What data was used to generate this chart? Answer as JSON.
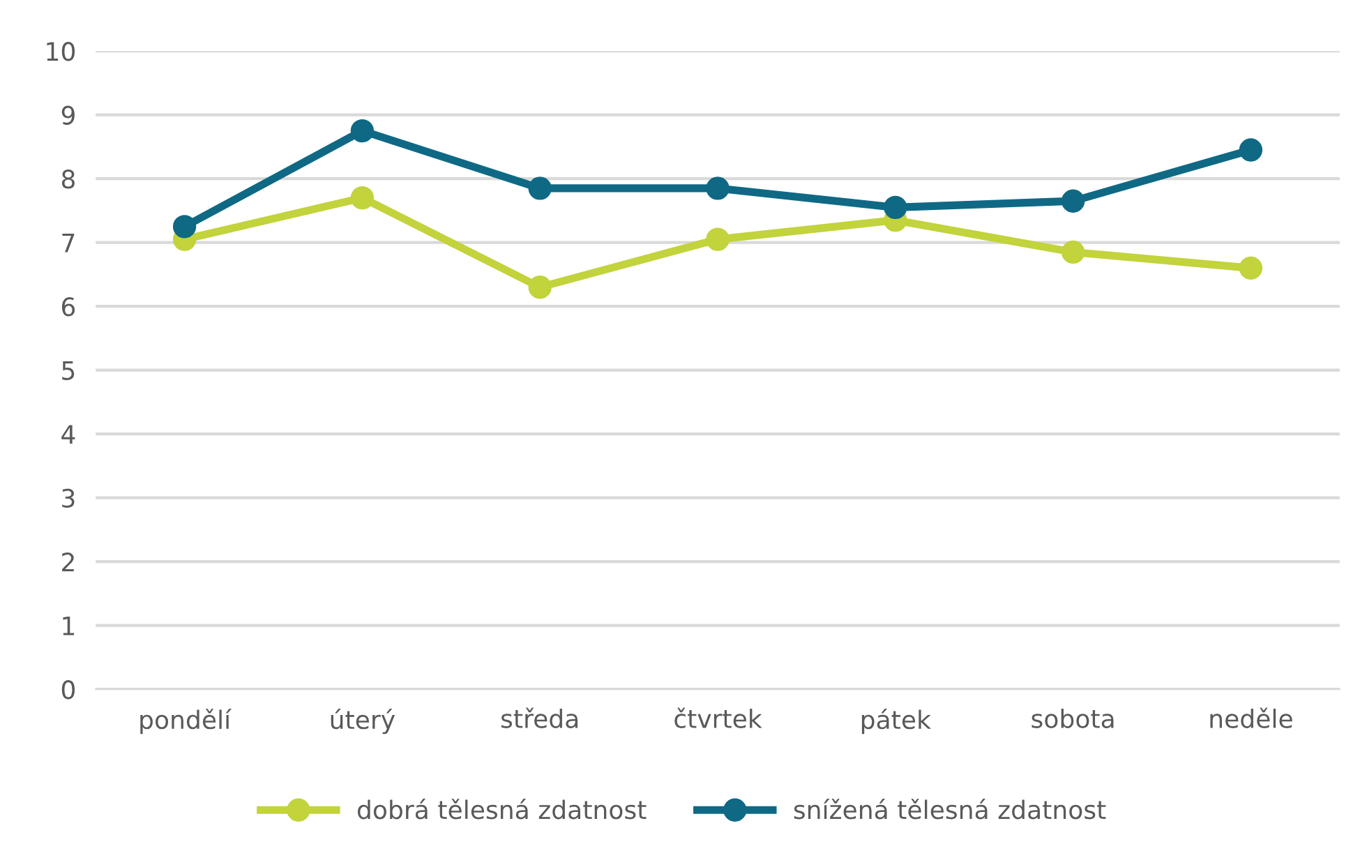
{
  "chart_data": {
    "type": "line",
    "categories": [
      "pondělí",
      "úterý",
      "středa",
      "čtvrtek",
      "pátek",
      "sobota",
      "neděle"
    ],
    "series": [
      {
        "name": "dobrá tělesná zdatnost",
        "color": "#c2d33c",
        "values": [
          7.05,
          7.7,
          6.3,
          7.05,
          7.35,
          6.85,
          6.6
        ]
      },
      {
        "name": "snížená tělesná zdatnost",
        "color": "#0f6985",
        "values": [
          7.25,
          8.75,
          7.85,
          7.85,
          7.55,
          7.65,
          8.45
        ]
      }
    ],
    "ylim": [
      0,
      10
    ],
    "yticks": [
      0,
      1,
      2,
      3,
      4,
      5,
      6,
      7,
      8,
      9,
      10
    ],
    "grid": "y",
    "legend": "bottom",
    "marker": "circle",
    "line_style": "solid"
  }
}
